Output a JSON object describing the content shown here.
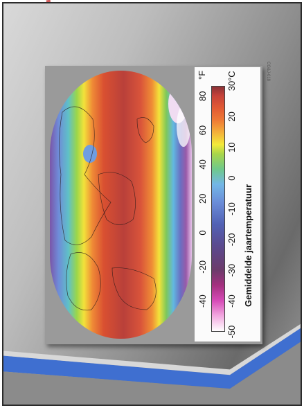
{
  "legend": {
    "title": "Gemiddelde jaartemperatuur",
    "fahrenheit_unit": "°F",
    "celsius_unit": "°C",
    "fahrenheit_ticks": [
      "-40",
      "-20",
      "0",
      "20",
      "40",
      "60",
      "80"
    ],
    "celsius_ticks": [
      "-50",
      "-40",
      "-30",
      "-20",
      "-10",
      "0",
      "10",
      "20",
      "30"
    ],
    "celsius_range": [
      -50,
      30
    ],
    "color_stops": [
      {
        "c": -50,
        "color": "#ffffff"
      },
      {
        "c": -45,
        "color": "#f2a8e0"
      },
      {
        "c": -40,
        "color": "#d64ab7"
      },
      {
        "c": -35,
        "color": "#a4307f"
      },
      {
        "c": -30,
        "color": "#6c3b6b"
      },
      {
        "c": -22,
        "color": "#5a4a8f"
      },
      {
        "c": -15,
        "color": "#5262b5"
      },
      {
        "c": -8,
        "color": "#6a8cd8"
      },
      {
        "c": -2,
        "color": "#73b7e6"
      },
      {
        "c": 3,
        "color": "#6fc98b"
      },
      {
        "c": 8,
        "color": "#a9d64a"
      },
      {
        "c": 11,
        "color": "#f3ea3a"
      },
      {
        "c": 15,
        "color": "#f4b03a"
      },
      {
        "c": 19,
        "color": "#ee7a35"
      },
      {
        "c": 23,
        "color": "#e25a34"
      },
      {
        "c": 27,
        "color": "#c6423a"
      },
      {
        "c": 30,
        "color": "#8a3236"
      }
    ]
  },
  "stamp": "CG&J-018"
}
